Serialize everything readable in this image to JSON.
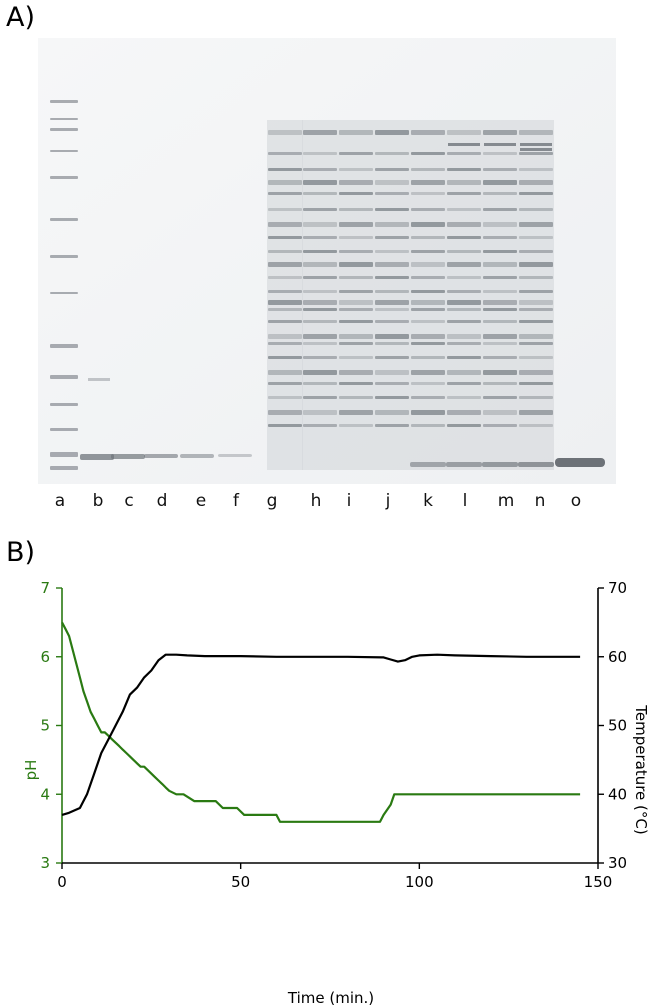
{
  "panel_a": {
    "label": "A)",
    "lanes": [
      "a",
      "b",
      "c",
      "d",
      "e",
      "f",
      "g",
      "h",
      "i",
      "j",
      "k",
      "l",
      "m",
      "n",
      "o"
    ]
  },
  "panel_b": {
    "label": "B)"
  },
  "chart_data": {
    "type": "line",
    "xlabel": "Time (min.)",
    "ylabel_left": "pH",
    "ylabel_right": "Temperature (°C)",
    "xlim": [
      0,
      150
    ],
    "xticks": [
      "0",
      "50",
      "100",
      "150"
    ],
    "ylim_left": [
      3,
      7
    ],
    "yticks_left": [
      "3",
      "4",
      "5",
      "6",
      "7"
    ],
    "ylim_right": [
      30,
      70
    ],
    "yticks_right": [
      "30",
      "40",
      "50",
      "60",
      "70"
    ],
    "grid": false,
    "colors": {
      "pH": "#2a7a12",
      "Temperature": "#000000"
    },
    "series": [
      {
        "axis": "left",
        "x": [
          0,
          1,
          2,
          3,
          4,
          5,
          6,
          7,
          8,
          9,
          10,
          11,
          12,
          13,
          14,
          15,
          16,
          17,
          18,
          19,
          20,
          21,
          22,
          23,
          24,
          25,
          26,
          27,
          28,
          29,
          30,
          32,
          34,
          37,
          40,
          43,
          45,
          47,
          49,
          51,
          54,
          57,
          60,
          61,
          65,
          70,
          75,
          80,
          85,
          89,
          90,
          92,
          93,
          95,
          100,
          110,
          120,
          130,
          140,
          145
        ],
        "y": [
          6.5,
          6.4,
          6.3,
          6.1,
          5.9,
          5.7,
          5.5,
          5.35,
          5.2,
          5.1,
          5.0,
          4.9,
          4.9,
          4.85,
          4.8,
          4.75,
          4.7,
          4.65,
          4.6,
          4.55,
          4.5,
          4.45,
          4.4,
          4.4,
          4.35,
          4.3,
          4.25,
          4.2,
          4.15,
          4.1,
          4.05,
          4.0,
          4.0,
          3.9,
          3.9,
          3.9,
          3.8,
          3.8,
          3.8,
          3.7,
          3.7,
          3.7,
          3.7,
          3.6,
          3.6,
          3.6,
          3.6,
          3.6,
          3.6,
          3.6,
          3.7,
          3.85,
          4.0,
          4.0,
          4.0,
          4.0,
          4.0,
          4.0,
          4.0,
          4.0
        ]
      },
      {
        "axis": "right",
        "x": [
          0,
          2,
          5,
          7,
          9,
          11,
          13,
          15,
          17,
          19,
          21,
          23,
          25,
          27,
          29,
          30,
          32,
          35,
          40,
          50,
          60,
          70,
          80,
          90,
          92,
          94,
          96,
          98,
          100,
          105,
          110,
          120,
          130,
          140,
          145
        ],
        "y": [
          37,
          37.3,
          38,
          40,
          43,
          46,
          48,
          50,
          52,
          54.5,
          55.5,
          57,
          58,
          59.5,
          60.3,
          60.3,
          60.3,
          60.2,
          60.1,
          60.1,
          60.0,
          60.0,
          60.0,
          59.9,
          59.6,
          59.3,
          59.5,
          60.0,
          60.2,
          60.3,
          60.2,
          60.1,
          60.0,
          60.0,
          60.0
        ]
      }
    ]
  }
}
